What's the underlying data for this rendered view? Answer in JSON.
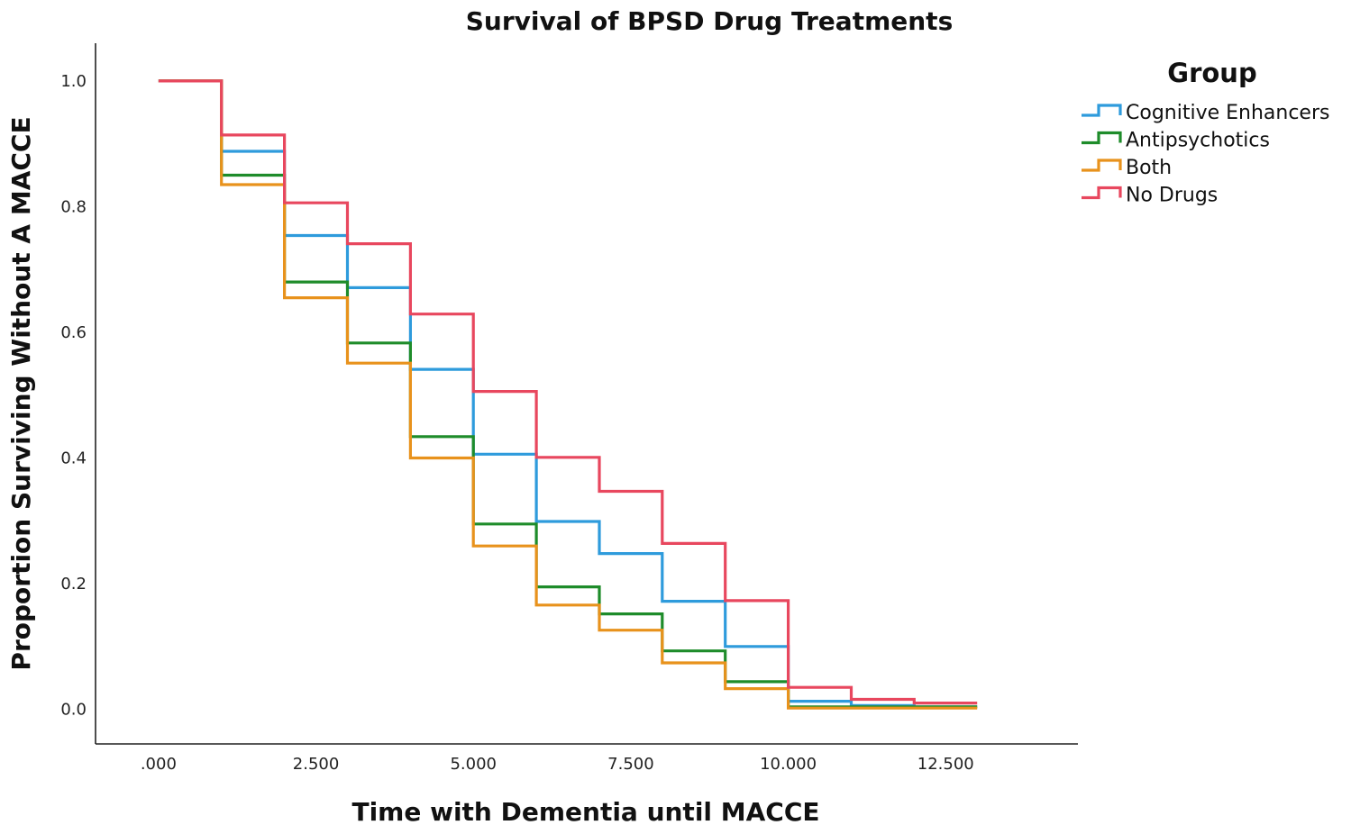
{
  "chart_data": {
    "type": "line",
    "style": "step",
    "title": "Survival of BPSD Drug Treatments",
    "xlabel": "Time with Dementia until MACCE",
    "ylabel": "Proportion Surviving Without A MACCE",
    "xlim": [
      -1.0,
      14.6
    ],
    "ylim": [
      -0.055,
      1.06
    ],
    "x_ticks": [
      0,
      2.5,
      5,
      7.5,
      10,
      12.5
    ],
    "x_tick_labels": [
      ".000",
      "2.500",
      "5.000",
      "7.500",
      "10.000",
      "12.500"
    ],
    "y_ticks": [
      0,
      0.2,
      0.4,
      0.6,
      0.8,
      1.0
    ],
    "y_tick_labels": [
      "0.0",
      "0.2",
      "0.4",
      "0.6",
      "0.8",
      "1.0"
    ],
    "grid": false,
    "legend": {
      "title": "Group",
      "placement": "top-right outside"
    },
    "x": [
      0,
      1,
      2,
      3,
      4,
      5,
      6,
      7,
      8,
      9,
      10,
      11,
      12,
      13
    ],
    "series": [
      {
        "name": "Cognitive Enhancers",
        "color": "#2E9BDC",
        "values": [
          1.0,
          0.888,
          0.754,
          0.671,
          0.541,
          0.406,
          0.299,
          0.248,
          0.172,
          0.1,
          0.013,
          0.006,
          0.004,
          0.004
        ]
      },
      {
        "name": "Antipsychotics",
        "color": "#1E8C2A",
        "values": [
          1.0,
          0.85,
          0.68,
          0.583,
          0.434,
          0.295,
          0.195,
          0.152,
          0.093,
          0.044,
          0.004,
          0.004,
          0.004,
          0.004
        ]
      },
      {
        "name": "Both",
        "color": "#E8921C",
        "values": [
          1.0,
          0.835,
          0.655,
          0.551,
          0.4,
          0.26,
          0.166,
          0.126,
          0.074,
          0.033,
          0.002,
          0.002,
          0.002,
          0.002
        ]
      },
      {
        "name": "No Drugs",
        "color": "#E8475E",
        "values": [
          1.0,
          0.914,
          0.806,
          0.741,
          0.629,
          0.506,
          0.401,
          0.347,
          0.264,
          0.173,
          0.035,
          0.016,
          0.01,
          0.01
        ]
      }
    ]
  }
}
